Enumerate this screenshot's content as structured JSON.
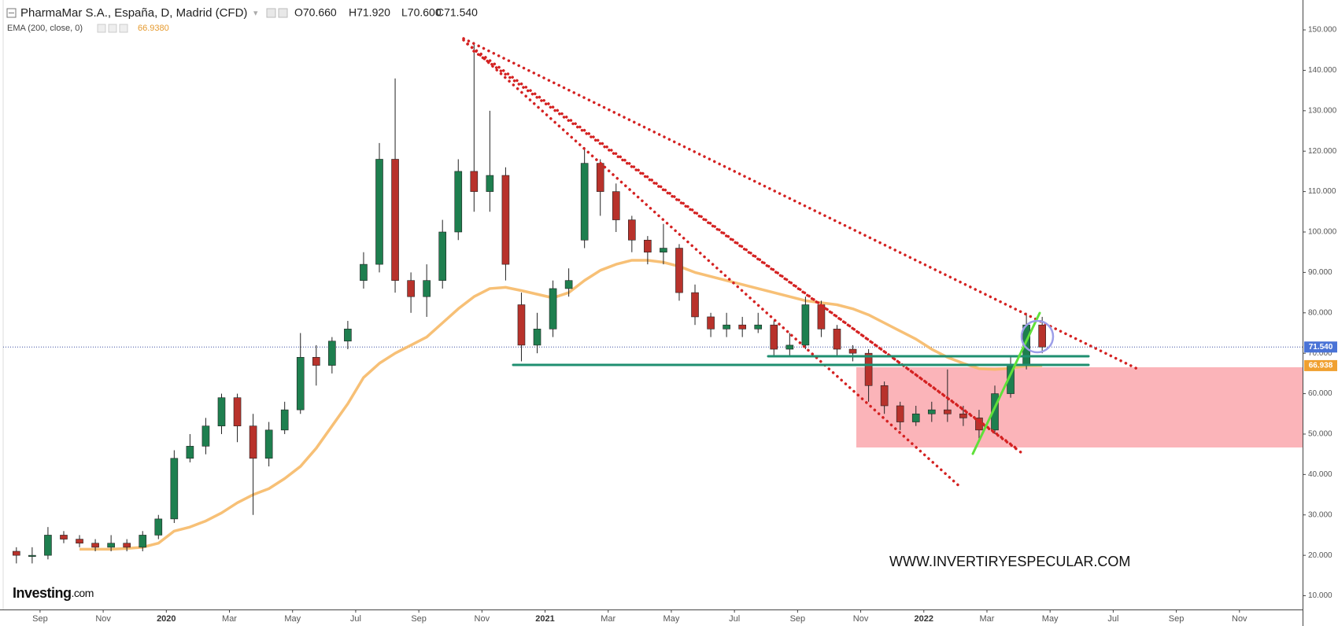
{
  "chart_data": {
    "type": "candlestick",
    "title": "PharmaMar S.A., España, D, Madrid (CFD)",
    "ohlc_legend": [
      "O70.660",
      "H71.920",
      "L70.600",
      "C71.540"
    ],
    "indicator": {
      "name": "EMA (200, close, 0)",
      "value_label": "66.9380",
      "color": "#f6b967",
      "values": [
        null,
        null,
        null,
        null,
        21.5,
        21.5,
        21.5,
        21.7,
        22,
        23,
        26,
        27,
        28.5,
        30.5,
        33,
        35,
        36.5,
        39,
        42,
        46.5,
        52,
        57.5,
        64,
        67.5,
        70,
        72,
        74,
        77.5,
        81,
        84,
        86,
        86.3,
        85.5,
        84.6,
        83.7,
        85,
        88,
        90.5,
        92,
        93,
        93,
        92.5,
        91.5,
        90,
        89,
        88,
        87,
        86,
        85,
        84,
        83,
        82.5,
        82,
        81,
        79.5,
        77.5,
        75.5,
        73.5,
        71,
        69,
        67.5,
        66.2,
        66,
        66.3,
        66.9,
        66.938,
        null,
        null,
        null,
        null,
        null,
        null,
        null,
        null,
        null,
        null,
        null,
        null,
        null,
        null,
        null,
        null
      ]
    },
    "categories": [
      null,
      null,
      "Sep",
      null,
      null,
      null,
      "Nov",
      null,
      null,
      null,
      "2020",
      null,
      null,
      null,
      "Mar",
      null,
      null,
      null,
      "May",
      null,
      null,
      null,
      "Jul",
      null,
      null,
      null,
      "Sep",
      null,
      null,
      null,
      "Nov",
      null,
      null,
      null,
      "2021",
      null,
      null,
      null,
      "Mar",
      null,
      null,
      null,
      "May",
      null,
      null,
      null,
      "Jul",
      null,
      null,
      null,
      "Sep",
      null,
      null,
      null,
      "Nov",
      null,
      null,
      null,
      "2022",
      null,
      null,
      null,
      "Mar",
      null,
      null,
      null,
      "May",
      null,
      null,
      null,
      "Jul",
      null,
      null,
      null,
      "Sep",
      null,
      null,
      null,
      "Nov",
      null,
      null,
      null
    ],
    "open": [
      21,
      20,
      20,
      25,
      24,
      23,
      22,
      23,
      22,
      25,
      29,
      44,
      47,
      52,
      59,
      52,
      44,
      51,
      56,
      69,
      67,
      73,
      88,
      92,
      118,
      88,
      84,
      88,
      100,
      115,
      110,
      114,
      82,
      72,
      76,
      86,
      98,
      117,
      110,
      103,
      98,
      95,
      96,
      85,
      79,
      76,
      77,
      76,
      77,
      71,
      72,
      82,
      76,
      71,
      70,
      62,
      57,
      53,
      55,
      56,
      55,
      54,
      51,
      60,
      67,
      77,
      null,
      null,
      null,
      null,
      null,
      null,
      null,
      null,
      null,
      null,
      null,
      null,
      null,
      null,
      null,
      null
    ],
    "high": [
      22,
      22,
      27,
      26,
      25,
      24,
      25,
      24,
      26,
      30,
      46,
      50,
      54,
      60,
      60,
      55,
      53,
      58,
      75,
      72,
      74,
      78,
      95,
      122,
      138,
      90,
      92,
      103,
      118,
      147,
      130,
      116,
      85,
      80,
      88,
      91,
      121,
      118,
      112,
      104,
      99,
      102,
      97,
      87,
      80,
      80,
      79,
      80,
      78,
      75,
      84,
      83,
      77,
      72,
      71,
      63,
      58,
      57,
      58,
      66,
      57,
      56,
      62,
      69,
      80,
      79,
      null,
      null,
      null,
      null,
      null,
      null,
      null,
      null,
      null,
      null,
      null,
      null,
      null,
      null,
      null,
      null
    ],
    "low": [
      18,
      18,
      19,
      23,
      22,
      21,
      21,
      21,
      21,
      24,
      28,
      43,
      45,
      50,
      48,
      30,
      42,
      50,
      55,
      62,
      65,
      71,
      86,
      90,
      85,
      80,
      79,
      86,
      98,
      105,
      105,
      88,
      68,
      70,
      74,
      84,
      96,
      104,
      100,
      95,
      92,
      92,
      83,
      77,
      74,
      74,
      74,
      75,
      69,
      69,
      71,
      74,
      69,
      68,
      58,
      55,
      51,
      52,
      53,
      53,
      52,
      48,
      50,
      59,
      66,
      70,
      null,
      null,
      null,
      null,
      null,
      null,
      null,
      null,
      null,
      null,
      null,
      null,
      null,
      null,
      null,
      null
    ],
    "close": [
      20,
      20,
      25,
      24,
      23,
      22,
      23,
      22,
      25,
      29,
      44,
      47,
      52,
      59,
      52,
      44,
      51,
      56,
      69,
      67,
      73,
      76,
      92,
      118,
      88,
      84,
      88,
      100,
      115,
      110,
      114,
      92,
      72,
      76,
      86,
      88,
      117,
      110,
      103,
      98,
      95,
      96,
      85,
      79,
      76,
      77,
      76,
      77,
      71,
      72,
      82,
      76,
      71,
      70,
      62,
      57,
      53,
      55,
      56,
      55,
      54,
      51,
      60,
      67,
      77,
      71.54,
      null,
      null,
      null,
      null,
      null,
      null,
      null,
      null,
      null,
      null,
      null,
      null,
      null,
      null,
      null,
      null
    ],
    "up_color": "#1e7f4f",
    "down_color": "#b8322b",
    "price_tags": [
      {
        "value": 71.54,
        "label": "71.540",
        "color": "#4a73d6"
      },
      {
        "value": 66.938,
        "label": "66.938",
        "color": "#f0a030"
      }
    ],
    "ylim": [
      6.6,
      157.4
    ],
    "yticks": [
      {
        "value": 10,
        "label": "10.000"
      },
      {
        "value": 20,
        "label": "20.000"
      },
      {
        "value": 30,
        "label": "30.000"
      },
      {
        "value": 40,
        "label": "40.000"
      },
      {
        "value": 50,
        "label": "50.000"
      },
      {
        "value": 60,
        "label": "60.000"
      },
      {
        "value": 70,
        "label": "70.000"
      },
      {
        "value": 80,
        "label": "80.000"
      },
      {
        "value": 90,
        "label": "90.000"
      },
      {
        "value": 100,
        "label": "100.000"
      },
      {
        "value": 110,
        "label": "110.000"
      },
      {
        "value": 120,
        "label": "120.000"
      },
      {
        "value": 130,
        "label": "130.000"
      },
      {
        "value": 140,
        "label": "140.000"
      },
      {
        "value": 150,
        "label": "150.000"
      }
    ],
    "watermark": "WWW.INVERTIRYESPECULAR.COM",
    "logo": [
      "Investing",
      ".com"
    ]
  }
}
